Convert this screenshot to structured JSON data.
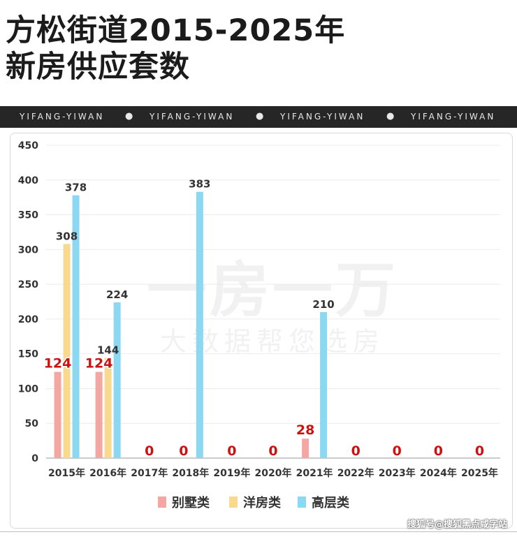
{
  "title_line1": "方松街道2015-2025年",
  "title_line2": "新房供应套数",
  "banner": [
    "YIFANG-YIWAN",
    "YIFANG-YIWAN",
    "YIFANG-YIWAN",
    "YIFANG-YIWAN"
  ],
  "watermark": {
    "main": "一房一万",
    "sub": "大数据帮您选房"
  },
  "credit": "搜狐号@搜狐黑点咸字站",
  "colors": {
    "别墅类": "#f4a6a3",
    "洋房类": "#f8d98e",
    "高层类": "#8ad8f2",
    "zero_label": "#cc1111",
    "bar_label": "#333333"
  },
  "chart_data": {
    "type": "bar",
    "categories": [
      "2015年",
      "2016年",
      "2017年",
      "2018年",
      "2019年",
      "2020年",
      "2021年",
      "2022年",
      "2023年",
      "2024年",
      "2025年"
    ],
    "series": [
      {
        "name": "别墅类",
        "values": [
          124,
          124,
          0,
          0,
          0,
          0,
          28,
          0,
          0,
          0,
          0
        ]
      },
      {
        "name": "洋房类",
        "values": [
          308,
          144,
          0,
          0,
          0,
          0,
          0,
          0,
          0,
          0,
          0
        ]
      },
      {
        "name": "高层类",
        "values": [
          378,
          224,
          0,
          383,
          0,
          0,
          210,
          0,
          0,
          0,
          0
        ]
      }
    ],
    "data_labels": [
      {
        "category": "2015年",
        "series": "别墅类",
        "text": "124",
        "style": "red"
      },
      {
        "category": "2015年",
        "series": "洋房类",
        "text": "308",
        "style": "dark"
      },
      {
        "category": "2015年",
        "series": "高层类",
        "text": "378",
        "style": "dark"
      },
      {
        "category": "2016年",
        "series": "别墅类",
        "text": "124",
        "style": "red"
      },
      {
        "category": "2016年",
        "series": "洋房类",
        "text": "144",
        "style": "dark"
      },
      {
        "category": "2016年",
        "series": "高层类",
        "text": "224",
        "style": "dark"
      },
      {
        "category": "2017年",
        "series": "all",
        "text": "0",
        "style": "red"
      },
      {
        "category": "2018年",
        "series": "别墅类",
        "text": "0",
        "style": "red"
      },
      {
        "category": "2018年",
        "series": "高层类",
        "text": "383",
        "style": "dark"
      },
      {
        "category": "2019年",
        "series": "all",
        "text": "0",
        "style": "red"
      },
      {
        "category": "2020年",
        "series": "all",
        "text": "0",
        "style": "red"
      },
      {
        "category": "2021年",
        "series": "别墅类",
        "text": "28",
        "style": "red"
      },
      {
        "category": "2021年",
        "series": "高层类",
        "text": "210",
        "style": "dark"
      },
      {
        "category": "2022年",
        "series": "all",
        "text": "0",
        "style": "red"
      },
      {
        "category": "2023年",
        "series": "all",
        "text": "0",
        "style": "red"
      },
      {
        "category": "2024年",
        "series": "all",
        "text": "0",
        "style": "red"
      },
      {
        "category": "2025年",
        "series": "all",
        "text": "0",
        "style": "red"
      }
    ],
    "yticks": [
      0,
      50,
      100,
      150,
      200,
      250,
      300,
      350,
      400,
      450
    ],
    "ylim": [
      0,
      450
    ],
    "grid": true,
    "legend": "bottom-center"
  }
}
